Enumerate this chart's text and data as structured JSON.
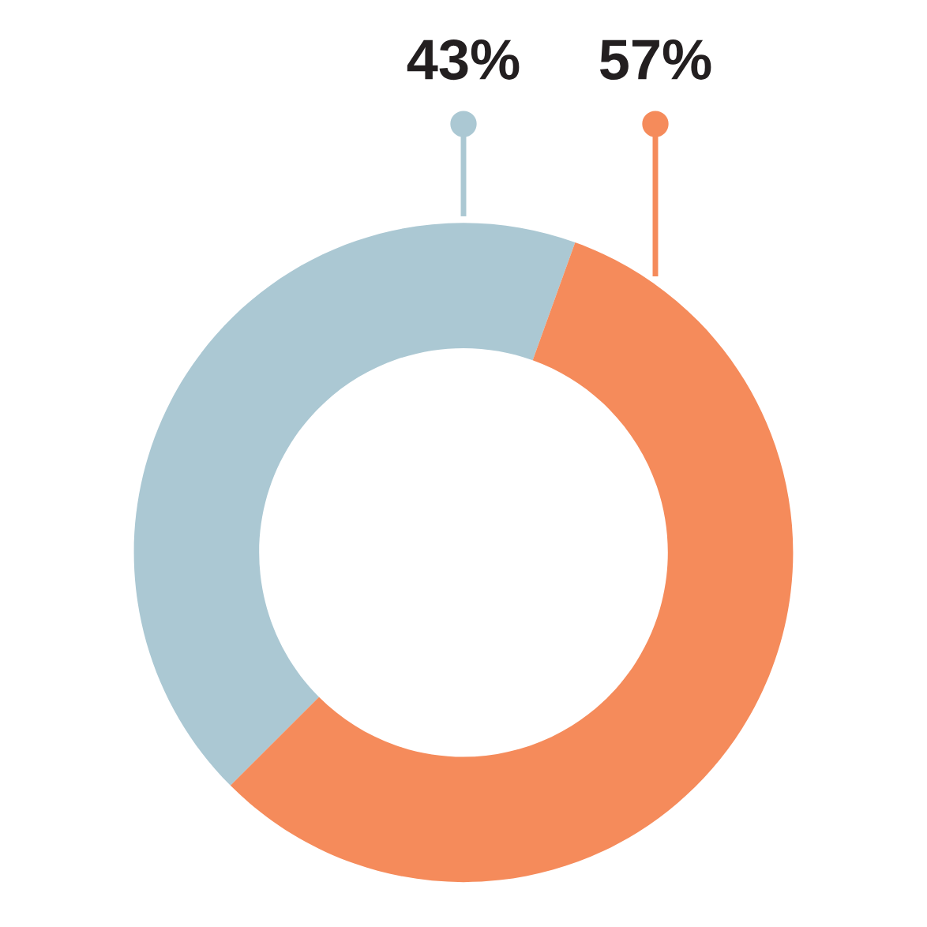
{
  "chart_data": {
    "type": "donut",
    "categories": [
      null,
      null
    ],
    "values": [
      43,
      57
    ],
    "colors": [
      "#abc8d3",
      "#f58b5b"
    ],
    "value_labels": [
      "43%",
      "57%"
    ]
  }
}
